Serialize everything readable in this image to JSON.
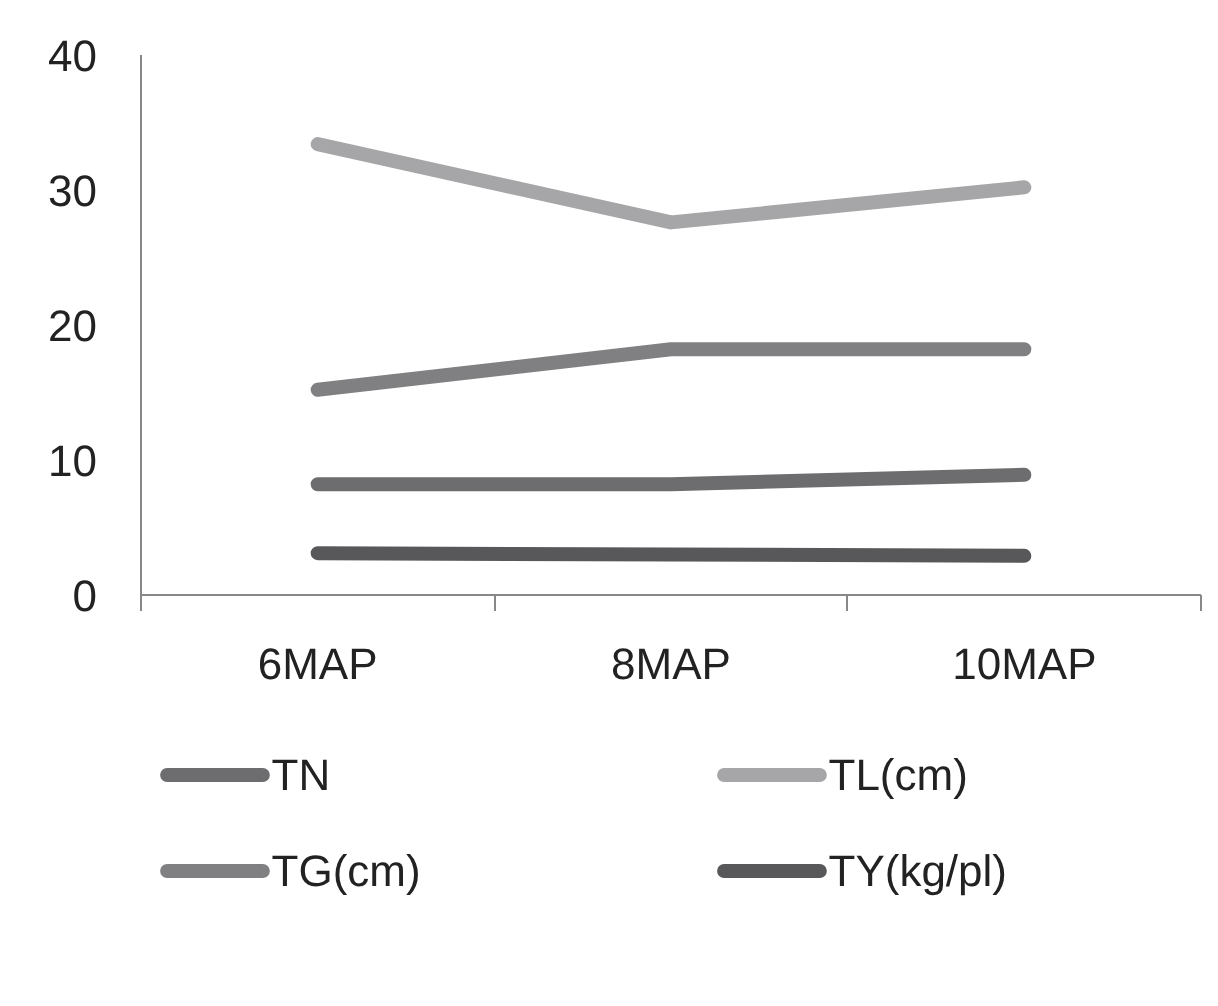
{
  "chart_data": {
    "type": "line",
    "categories": [
      "6MAP",
      "8MAP",
      "10MAP"
    ],
    "series": [
      {
        "name": "TN",
        "color": "#6d6d6f",
        "values": [
          8.2,
          8.2,
          8.9
        ]
      },
      {
        "name": "TL(cm)",
        "color": "#a6a6a8",
        "values": [
          33.4,
          27.6,
          30.2
        ]
      },
      {
        "name": "TG(cm)",
        "color": "#808083",
        "values": [
          15.2,
          18.2,
          18.2
        ]
      },
      {
        "name": "TY(kg/pl)",
        "color": "#58585a",
        "values": [
          3.1,
          3.0,
          2.9
        ]
      }
    ],
    "ylim": [
      0,
      40
    ],
    "yticks": [
      0,
      10,
      20,
      30,
      40
    ],
    "grid": false,
    "legend": "bottom",
    "marker": "none",
    "line_style": "solid"
  }
}
